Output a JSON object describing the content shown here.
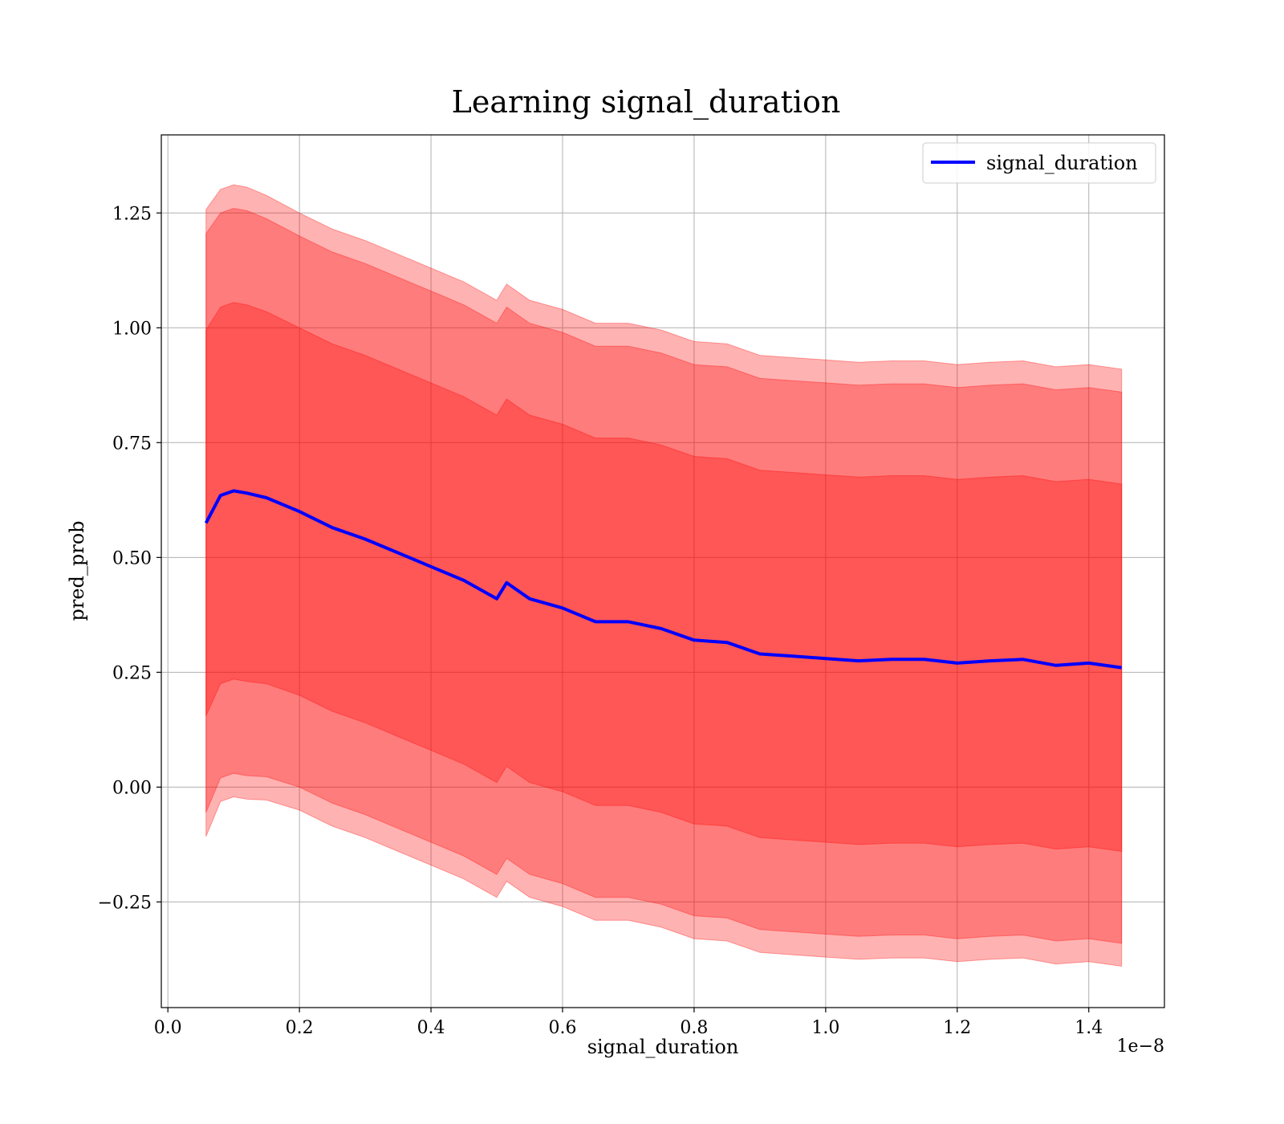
{
  "chart_data": {
    "type": "area",
    "title": "Learning signal_duration",
    "xlabel": "signal_duration",
    "ylabel": "pred_prob",
    "x_offset_label": "1e−8",
    "xlim": [
      -1e-10,
      1.515e-08
    ],
    "ylim": [
      -0.48,
      1.42
    ],
    "x_ticks": [
      0.0,
      2e-09,
      4e-09,
      6e-09,
      8e-09,
      1e-08,
      1.2e-08,
      1.4e-08
    ],
    "x_tick_labels": [
      "0.0",
      "0.2",
      "0.4",
      "0.6",
      "0.8",
      "1.0",
      "1.2",
      "1.4"
    ],
    "y_ticks": [
      -0.25,
      0.0,
      0.25,
      0.5,
      0.75,
      1.0,
      1.25
    ],
    "y_tick_labels": [
      "−0.25",
      "0.00",
      "0.25",
      "0.50",
      "0.75",
      "1.00",
      "1.25"
    ],
    "grid": true,
    "legend_position": "top-right",
    "colors": {
      "mean_line": "#0000ff",
      "band": "#ff0000",
      "grid": "#b0b0b0"
    },
    "series": [
      {
        "name": "signal_duration",
        "x": [
          5.8e-10,
          8e-10,
          1e-09,
          1.2e-09,
          1.5e-09,
          2e-09,
          2.5e-09,
          3e-09,
          3.5e-09,
          4e-09,
          4.5e-09,
          5e-09,
          5.15e-09,
          5.5e-09,
          6e-09,
          6.5e-09,
          7e-09,
          7.5e-09,
          8e-09,
          8.5e-09,
          9e-09,
          9.5e-09,
          1e-08,
          1.05e-08,
          1.1e-08,
          1.15e-08,
          1.2e-08,
          1.25e-08,
          1.3e-08,
          1.35e-08,
          1.4e-08,
          1.45e-08
        ],
        "y": [
          0.575,
          0.635,
          0.645,
          0.64,
          0.63,
          0.6,
          0.565,
          0.54,
          0.51,
          0.48,
          0.45,
          0.41,
          0.445,
          0.41,
          0.39,
          0.36,
          0.36,
          0.345,
          0.32,
          0.315,
          0.29,
          0.285,
          0.28,
          0.275,
          0.278,
          0.278,
          0.27,
          0.275,
          0.278,
          0.265,
          0.27,
          0.26
        ],
        "std": [
          0.42,
          0.41,
          0.41,
          0.41,
          0.405,
          0.4,
          0.4,
          0.4,
          0.4,
          0.4,
          0.4,
          0.4,
          0.4,
          0.4,
          0.4,
          0.4,
          0.4,
          0.4,
          0.4,
          0.4,
          0.4,
          0.4,
          0.4,
          0.4,
          0.4,
          0.4,
          0.4,
          0.4,
          0.4,
          0.4,
          0.4,
          0.4
        ]
      }
    ],
    "bands_sigma": [
      1,
      1.5,
      1.625
    ]
  }
}
